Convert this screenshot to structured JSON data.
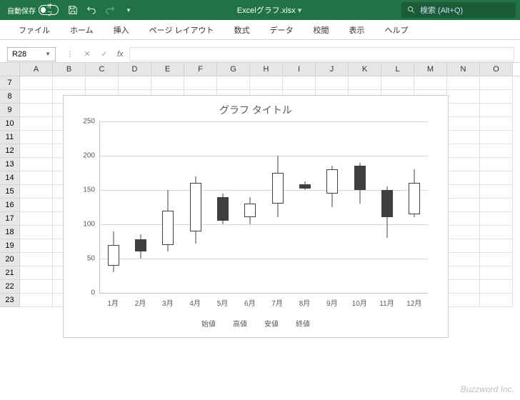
{
  "titlebar": {
    "autosave_label": "自動保存",
    "autosave_state": "オフ",
    "filename": "Excelグラフ.xlsx",
    "search_placeholder": "検索 (Alt+Q)"
  },
  "ribbon": {
    "tabs": [
      "ファイル",
      "ホーム",
      "挿入",
      "ページ レイアウト",
      "数式",
      "データ",
      "校閲",
      "表示",
      "ヘルプ"
    ]
  },
  "namebox": {
    "value": "R28",
    "fx_label": "fx"
  },
  "columns": [
    "A",
    "B",
    "C",
    "D",
    "E",
    "F",
    "G",
    "H",
    "I",
    "J",
    "K",
    "L",
    "M",
    "N",
    "O"
  ],
  "rows": [
    7,
    8,
    9,
    10,
    11,
    12,
    13,
    14,
    15,
    16,
    17,
    18,
    19,
    20,
    21,
    22,
    23
  ],
  "chart": {
    "type": "candlestick",
    "title": "グラフ タイトル",
    "title_fontsize": 14,
    "title_color": "#595959",
    "background_color": "#ffffff",
    "border_color": "#cccccc",
    "grid_color": "#d9d9d9",
    "axis_color": "#bfbfbf",
    "label_color": "#595959",
    "label_fontsize": 10,
    "up_fill": "#ffffff",
    "down_fill": "#404040",
    "candle_border": "#404040",
    "wick_color": "#404040",
    "body_width": 16,
    "ylim": [
      0,
      250
    ],
    "ytick_step": 50,
    "yticks": [
      0,
      50,
      100,
      150,
      200,
      250
    ],
    "categories": [
      "1月",
      "2月",
      "3月",
      "4月",
      "5月",
      "6月",
      "7月",
      "8月",
      "9月",
      "10月",
      "11月",
      "12月"
    ],
    "series": [
      {
        "open": 40,
        "high": 90,
        "low": 30,
        "close": 70
      },
      {
        "open": 78,
        "high": 85,
        "low": 50,
        "close": 60
      },
      {
        "open": 70,
        "high": 150,
        "low": 60,
        "close": 120
      },
      {
        "open": 90,
        "high": 170,
        "low": 72,
        "close": 160
      },
      {
        "open": 140,
        "high": 145,
        "low": 100,
        "close": 105
      },
      {
        "open": 110,
        "high": 140,
        "low": 100,
        "close": 130
      },
      {
        "open": 130,
        "high": 200,
        "low": 110,
        "close": 175
      },
      {
        "open": 158,
        "high": 162,
        "low": 150,
        "close": 152
      },
      {
        "open": 145,
        "high": 185,
        "low": 125,
        "close": 180
      },
      {
        "open": 185,
        "high": 190,
        "low": 130,
        "close": 150
      },
      {
        "open": 150,
        "high": 155,
        "low": 80,
        "close": 110
      },
      {
        "open": 115,
        "high": 180,
        "low": 110,
        "close": 160
      }
    ],
    "legend_items": [
      "始値",
      "高値",
      "安値",
      "終値"
    ]
  },
  "watermark": "Buzzword Inc."
}
